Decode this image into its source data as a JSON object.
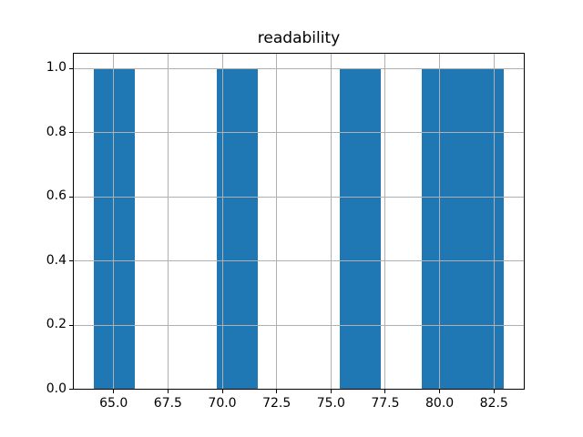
{
  "chart_data": {
    "type": "bar",
    "subtype": "histogram",
    "title": "readability",
    "xlabel": "",
    "ylabel": "",
    "bin_edges": [
      64.07,
      65.96,
      67.85,
      69.74,
      71.63,
      73.52,
      75.41,
      77.3,
      79.19,
      81.08,
      82.97
    ],
    "counts": [
      1,
      0,
      0,
      1,
      0,
      0,
      1,
      0,
      1,
      1
    ],
    "x_ticks": [
      65.0,
      67.5,
      70.0,
      72.5,
      75.0,
      77.5,
      80.0,
      82.5
    ],
    "x_tick_labels": [
      "65.0",
      "67.5",
      "70.0",
      "72.5",
      "75.0",
      "77.5",
      "80.0",
      "82.5"
    ],
    "y_ticks": [
      0.0,
      0.2,
      0.4,
      0.6,
      0.8,
      1.0
    ],
    "y_tick_labels": [
      "0.0",
      "0.2",
      "0.4",
      "0.6",
      "0.8",
      "1.0"
    ],
    "xlim": [
      63.125,
      83.915
    ],
    "ylim": [
      0,
      1.05
    ],
    "grid": true,
    "grid_position": "above-bars",
    "legend": null,
    "colors": {
      "bar": "#1f77b4",
      "grid": "#b0b0b0",
      "axes_edge": "#000000",
      "text": "#000000",
      "background": "#ffffff"
    }
  }
}
